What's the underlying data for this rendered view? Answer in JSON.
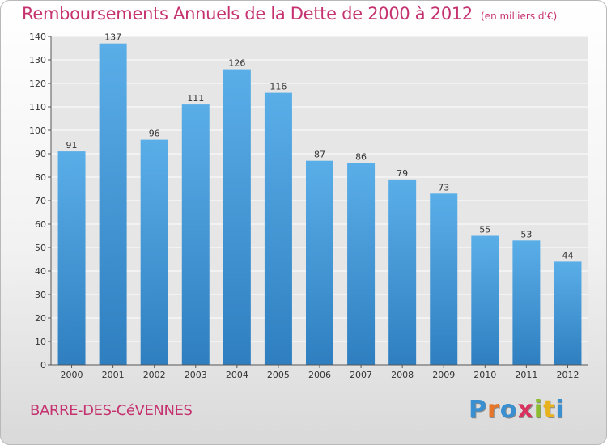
{
  "header": {
    "title": "Remboursements Annuels de la Dette de 2000 à 2012",
    "subtitle": "(en milliers d'€)"
  },
  "footer": {
    "commune": "BARRE-DES-CéVENNES",
    "logo_text": "Proxiti",
    "logo_colors": [
      "#3a8fd1",
      "#e8762a",
      "#3a8fd1",
      "#d9325f",
      "#8cbd2f",
      "#e8b21f",
      "#3a8fd1"
    ]
  },
  "colors": {
    "accent": "#c5326f",
    "bar_top": "#5aaee8",
    "bar_bottom": "#2f7fc0"
  },
  "chart_data": {
    "type": "bar",
    "title": "Remboursements Annuels de la Dette de 2000 à 2012",
    "subtitle": "(en milliers d'€)",
    "categories": [
      "2000",
      "2001",
      "2002",
      "2003",
      "2004",
      "2005",
      "2006",
      "2007",
      "2008",
      "2009",
      "2010",
      "2011",
      "2012"
    ],
    "values": [
      91,
      137,
      96,
      111,
      126,
      116,
      87,
      86,
      79,
      73,
      55,
      53,
      44
    ],
    "ylim": [
      0,
      140
    ],
    "yticks": [
      0,
      10,
      20,
      30,
      40,
      50,
      60,
      70,
      80,
      90,
      100,
      110,
      120,
      130,
      140
    ],
    "grid": true,
    "data_labels": true
  }
}
